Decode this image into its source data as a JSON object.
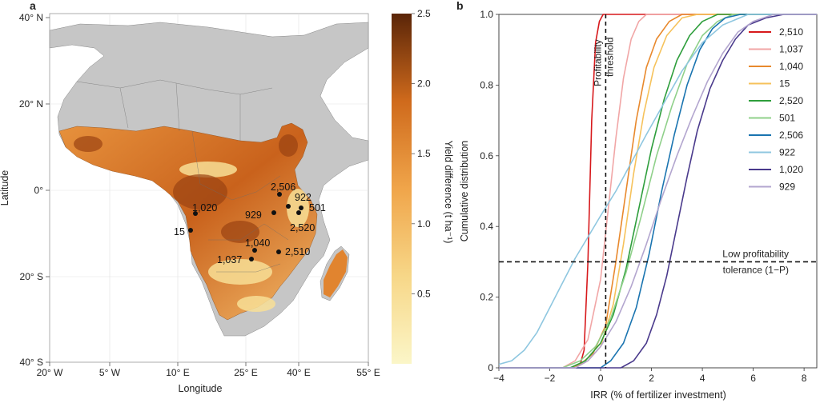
{
  "map_panel": {
    "letter": "a",
    "xlabel": "Longitude",
    "ylabel": "Latitude",
    "lon_ticks": [
      "20° W",
      "5° W",
      "10° E",
      "25° E",
      "40° E",
      "55° E"
    ],
    "lat_ticks": [
      "40° N",
      "20° N",
      "0°",
      "20° S",
      "40° S"
    ],
    "colorbar": {
      "label": "Yield difference (t ha⁻¹)",
      "ticks": [
        "2.5",
        "2.0",
        "1.5",
        "1.0",
        "0.5"
      ],
      "color_low": "#fbf6c8",
      "color_high": "#5a2508"
    },
    "sites": [
      {
        "label": "2,506"
      },
      {
        "label": "922"
      },
      {
        "label": "501"
      },
      {
        "label": "929"
      },
      {
        "label": "2,520"
      },
      {
        "label": "1,020"
      },
      {
        "label": "15"
      },
      {
        "label": "1,040"
      },
      {
        "label": "2,510"
      },
      {
        "label": "1,037"
      }
    ]
  },
  "chart_data": {
    "type": "line",
    "panel_letter": "b",
    "title": "",
    "xlabel": "IRR (% of fertilizer investment)",
    "ylabel": "Cumulative distribution",
    "xlim": [
      -4,
      8.5
    ],
    "ylim": [
      0,
      1.0
    ],
    "x_ticks": [
      "−4",
      "−2",
      "0",
      "2",
      "4",
      "6",
      "8"
    ],
    "y_ticks": [
      "0",
      "0.2",
      "0.4",
      "0.6",
      "0.8",
      "1.0"
    ],
    "grid": false,
    "legend_position": "top-right",
    "annotations": {
      "vertical_line_label_1": "Profitability",
      "vertical_line_label_2": "threshold",
      "vertical_line_x": 0.2,
      "horizontal_line_label_1": "Low profitability",
      "horizontal_line_label_2": "tolerance (1−P)",
      "horizontal_line_y": 0.3
    },
    "series": [
      {
        "name": "2,510",
        "color": "#d7191c",
        "x": [
          -4.0,
          -1.0,
          -0.8,
          -0.65,
          -0.5,
          -0.35,
          -0.2,
          -0.05,
          0.1,
          4.0,
          8.5
        ],
        "y": [
          0,
          0,
          0.01,
          0.05,
          0.3,
          0.7,
          0.92,
          0.98,
          1.0,
          1.0,
          1.0
        ]
      },
      {
        "name": "1,037",
        "color": "#f1a6a6",
        "x": [
          -4.0,
          -1.5,
          -1.0,
          -0.5,
          0.0,
          0.3,
          0.6,
          0.9,
          1.2,
          1.5,
          1.8,
          8.5
        ],
        "y": [
          0,
          0,
          0.02,
          0.08,
          0.25,
          0.45,
          0.65,
          0.82,
          0.93,
          0.98,
          1.0,
          1.0
        ]
      },
      {
        "name": "1,040",
        "color": "#e8892d",
        "x": [
          -4.0,
          -1.2,
          -0.8,
          -0.3,
          0.2,
          0.6,
          1.0,
          1.4,
          1.8,
          2.2,
          2.7,
          3.2,
          8.5
        ],
        "y": [
          0,
          0,
          0.01,
          0.04,
          0.12,
          0.3,
          0.5,
          0.7,
          0.85,
          0.93,
          0.98,
          1.0,
          1.0
        ]
      },
      {
        "name": "15",
        "color": "#f6c25b",
        "x": [
          -4.0,
          -1.0,
          -0.5,
          0.0,
          0.5,
          0.9,
          1.3,
          1.7,
          2.1,
          2.6,
          3.2,
          3.8,
          8.5
        ],
        "y": [
          0,
          0,
          0.02,
          0.06,
          0.18,
          0.35,
          0.55,
          0.72,
          0.85,
          0.94,
          0.99,
          1.0,
          1.0
        ]
      },
      {
        "name": "2,520",
        "color": "#2e9e3c",
        "x": [
          -4.0,
          -1.2,
          -0.6,
          0.0,
          0.5,
          1.0,
          1.5,
          2.0,
          2.5,
          3.0,
          3.5,
          4.0,
          4.6,
          8.5
        ],
        "y": [
          0,
          0,
          0.02,
          0.07,
          0.15,
          0.28,
          0.45,
          0.62,
          0.76,
          0.87,
          0.94,
          0.98,
          1.0,
          1.0
        ]
      },
      {
        "name": "501",
        "color": "#8fd08a",
        "x": [
          -4.0,
          -1.5,
          -0.8,
          -0.2,
          0.4,
          1.0,
          1.6,
          2.2,
          2.8,
          3.4,
          4.0,
          4.6,
          5.2,
          8.5
        ],
        "y": [
          0,
          0,
          0.02,
          0.06,
          0.14,
          0.27,
          0.43,
          0.6,
          0.74,
          0.86,
          0.94,
          0.98,
          1.0,
          1.0
        ]
      },
      {
        "name": "2,506",
        "color": "#1a74b0",
        "x": [
          -4.0,
          0.0,
          0.4,
          0.9,
          1.4,
          1.9,
          2.4,
          2.9,
          3.4,
          3.9,
          4.4,
          4.9,
          5.5,
          8.5
        ],
        "y": [
          0,
          0,
          0.02,
          0.07,
          0.17,
          0.32,
          0.5,
          0.66,
          0.8,
          0.9,
          0.96,
          0.99,
          1.0,
          1.0
        ]
      },
      {
        "name": "922",
        "color": "#8fc7e0",
        "x": [
          -4.0,
          -3.5,
          -3.0,
          -2.5,
          -2.0,
          -1.5,
          -1.0,
          -0.5,
          0.0,
          0.6,
          1.2,
          1.8,
          2.5,
          3.2,
          4.0,
          4.8,
          5.8,
          8.5
        ],
        "y": [
          0.01,
          0.02,
          0.05,
          0.1,
          0.17,
          0.24,
          0.31,
          0.37,
          0.43,
          0.5,
          0.58,
          0.66,
          0.75,
          0.84,
          0.92,
          0.97,
          1.0,
          1.0
        ]
      },
      {
        "name": "1,020",
        "color": "#4a3a8c",
        "x": [
          -4.0,
          0.8,
          1.3,
          1.8,
          2.2,
          2.6,
          3.0,
          3.4,
          3.8,
          4.3,
          4.8,
          5.3,
          5.8,
          6.5,
          7.2,
          8.5
        ],
        "y": [
          0,
          0,
          0.02,
          0.07,
          0.15,
          0.26,
          0.4,
          0.54,
          0.67,
          0.79,
          0.87,
          0.93,
          0.97,
          0.99,
          1.0,
          1.0
        ]
      },
      {
        "name": "929",
        "color": "#b3a6cf",
        "x": [
          -4.0,
          -1.0,
          -0.5,
          0.0,
          0.6,
          1.2,
          1.8,
          2.4,
          3.0,
          3.6,
          4.2,
          4.8,
          5.4,
          6.0,
          6.8,
          8.5
        ],
        "y": [
          0,
          0,
          0.02,
          0.06,
          0.13,
          0.23,
          0.35,
          0.48,
          0.6,
          0.71,
          0.81,
          0.89,
          0.95,
          0.98,
          1.0,
          1.0
        ]
      }
    ]
  }
}
